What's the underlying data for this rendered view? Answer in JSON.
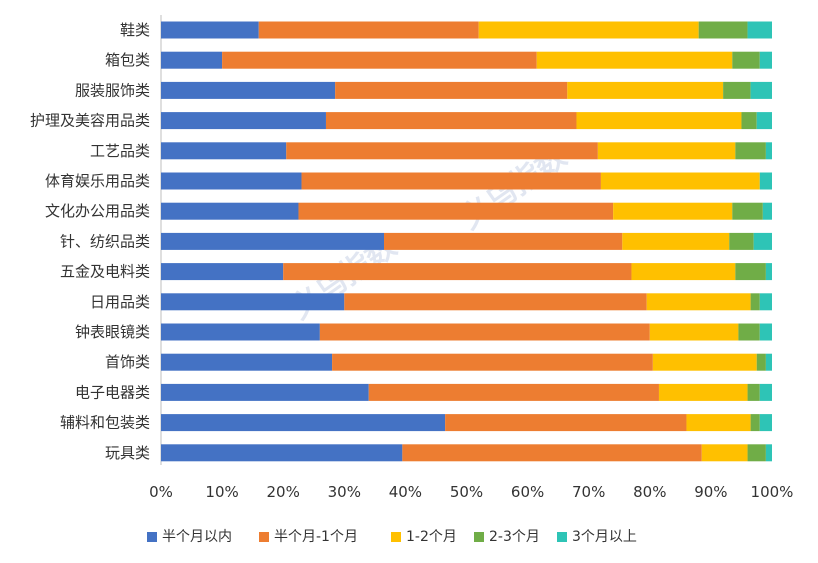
{
  "chart_data": {
    "type": "bar",
    "orientation": "horizontal",
    "stacked": "percent",
    "categories": [
      "鞋类",
      "箱包类",
      "服装服饰类",
      "护理及美容用品类",
      "工艺品类",
      "体育娱乐用品类",
      "文化办公用品类",
      "针、纺织品类",
      "五金及电料类",
      "日用品类",
      "钟表眼镜类",
      "首饰类",
      "电子电器类",
      "辅料和包装类",
      "玩具类"
    ],
    "series": [
      {
        "name": "半个月以内",
        "color": "#4472C4",
        "values": [
          16,
          10,
          28.5,
          27,
          20.5,
          23,
          22.5,
          36.5,
          20,
          30,
          26,
          28,
          34,
          46.5,
          39.5
        ]
      },
      {
        "name": "半个月-1个月",
        "color": "#ED7D31",
        "values": [
          36,
          51.5,
          38,
          41,
          51,
          49,
          51.5,
          39,
          57,
          49.5,
          54,
          52.5,
          47.5,
          39.5,
          49
        ]
      },
      {
        "name": "1-2个月",
        "color": "#FFC000",
        "values": [
          36,
          32,
          25.5,
          27,
          22.5,
          26,
          19.5,
          17.5,
          17,
          17,
          14.5,
          17,
          14.5,
          10.5,
          7.5
        ]
      },
      {
        "name": "2-3个月",
        "color": "#70AD47",
        "values": [
          8,
          4.5,
          4.5,
          2.5,
          5,
          0,
          5,
          4,
          5,
          1.5,
          3.5,
          1.5,
          2,
          1.5,
          3
        ]
      },
      {
        "name": "3个月以上",
        "color": "#2EC4B6",
        "values": [
          4,
          2,
          3.5,
          2.5,
          1,
          2,
          1.5,
          3,
          1,
          2,
          2,
          1,
          2,
          2,
          1
        ]
      }
    ],
    "xlim": [
      0,
      100
    ],
    "x_ticks": [
      "0%",
      "10%",
      "20%",
      "30%",
      "40%",
      "50%",
      "60%",
      "70%",
      "80%",
      "90%",
      "100%"
    ],
    "legend_position": "bottom",
    "grid": false
  },
  "watermark": "义乌指数"
}
